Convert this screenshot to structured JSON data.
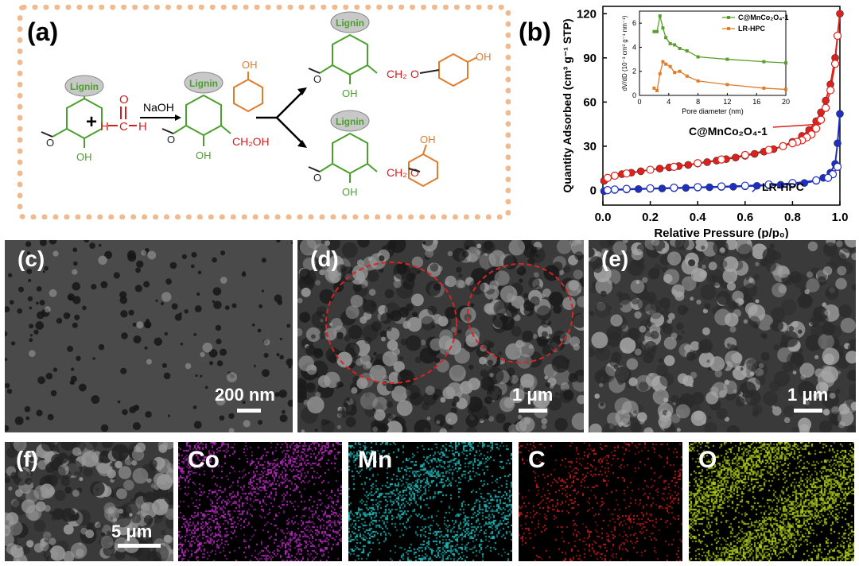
{
  "panel_a": {
    "label": "(a)",
    "lignin": "Lignin",
    "naoh": "NaOH",
    "plus": "+",
    "ch2oh": "CH₂OH",
    "ch2": "CH₂",
    "oxygen": "O",
    "methoxy": "O",
    "oh": "OH",
    "ho": "OH",
    "h": "H",
    "c": "C"
  },
  "panel_b": {
    "label": "(b)",
    "chart_data": {
      "type": "scatter",
      "xlabel": "Relative Pressure (p/p₀)",
      "ylabel": "Quantity Adsorbed (cm³ g⁻¹ STP)",
      "xlim": [
        0.0,
        1.0
      ],
      "ylim": [
        -10,
        125
      ],
      "xticks": [
        "0.0",
        "0.2",
        "0.4",
        "0.6",
        "0.8",
        "1.0"
      ],
      "yticks": [
        "0",
        "30",
        "60",
        "90",
        "120"
      ],
      "annotations": [
        "C@MnCo₂O₄-1",
        "LR-HPC"
      ],
      "series": [
        {
          "name": "C@MnCo₂O₄-1",
          "color": "#e0201b",
          "adsorption": {
            "x": [
              0.005,
              0.02,
              0.05,
              0.08,
              0.12,
              0.16,
              0.2,
              0.24,
              0.28,
              0.32,
              0.36,
              0.4,
              0.44,
              0.48,
              0.52,
              0.56,
              0.6,
              0.64,
              0.68,
              0.72,
              0.76,
              0.8,
              0.84,
              0.87,
              0.9,
              0.92,
              0.94,
              0.96,
              0.98,
              0.99,
              1.0
            ],
            "y": [
              6.5,
              8.5,
              10,
              11,
              12,
              13,
              14,
              14.8,
              15.6,
              16.5,
              17.3,
              18.2,
              19.2,
              20.2,
              21.2,
              22.3,
              23.5,
              24.8,
              26.3,
              28,
              30.2,
              33,
              37,
              41,
              47,
              53,
              61,
              72,
              90,
              105,
              120
            ]
          },
          "desorption": {
            "x": [
              0.99,
              0.98,
              0.96,
              0.94,
              0.92,
              0.9,
              0.88,
              0.86,
              0.84,
              0.82,
              0.8,
              0.76,
              0.7,
              0.6,
              0.5,
              0.4,
              0.3,
              0.2,
              0.1,
              0.05,
              0.02
            ],
            "y": [
              105,
              86,
              68,
              56,
              48,
              42,
              38,
              36,
              34,
              33,
              32,
              30,
              27.5,
              24,
              21,
              18.5,
              16,
              14,
              11.5,
              10,
              8.5
            ]
          }
        },
        {
          "name": "LR-HPC",
          "color": "#1c2fc4",
          "adsorption": {
            "x": [
              0.005,
              0.02,
              0.05,
              0.1,
              0.15,
              0.2,
              0.25,
              0.3,
              0.35,
              0.4,
              0.45,
              0.5,
              0.55,
              0.6,
              0.65,
              0.7,
              0.75,
              0.8,
              0.85,
              0.9,
              0.93,
              0.96,
              0.98,
              0.99,
              1.0
            ],
            "y": [
              -0.5,
              0,
              0.3,
              0.6,
              0.9,
              1.1,
              1.3,
              1.5,
              1.7,
              1.9,
              2.1,
              2.3,
              2.5,
              2.8,
              3.1,
              3.4,
              3.8,
              4.2,
              5,
              6.5,
              8.5,
              12,
              18,
              32,
              52
            ]
          },
          "desorption": {
            "x": [
              0.99,
              0.97,
              0.95,
              0.9,
              0.8,
              0.7,
              0.6,
              0.5,
              0.4,
              0.3,
              0.2,
              0.1,
              0.05,
              0.02
            ],
            "y": [
              16,
              11,
              8.5,
              6.8,
              5,
              4,
              3.2,
              2.7,
              2.2,
              1.8,
              1.4,
              1,
              0.6,
              0.2
            ]
          }
        }
      ],
      "inset": {
        "type": "line",
        "xlabel": "Pore diameter (nm)",
        "ylabel": "dV/dD (10⁻³ cm³ g⁻¹ nm⁻¹)",
        "xlim": [
          0,
          20
        ],
        "ylim": [
          0,
          7
        ],
        "xticks": [
          "0",
          "4",
          "8",
          "12",
          "16",
          "20"
        ],
        "yticks": [
          "0",
          "2",
          "4",
          "6"
        ],
        "legend": [
          "C@MnCo₂O₄-1",
          "LR-HPC"
        ],
        "series": [
          {
            "name": "C@MnCo₂O₄-1",
            "color": "#5a9e2c",
            "x": [
              2,
              2.4,
              2.8,
              3.2,
              3.6,
              4.2,
              4.8,
              5.5,
              6.5,
              8,
              12,
              17,
              20
            ],
            "y": [
              5.3,
              5.3,
              6.6,
              5.6,
              4.8,
              4.3,
              4.2,
              3.9,
              3.7,
              3.2,
              3.0,
              2.8,
              2.7
            ]
          },
          {
            "name": "LR-HPC",
            "color": "#e07c2a",
            "x": [
              2,
              2.4,
              2.8,
              3.2,
              3.6,
              4.2,
              4.8,
              5.5,
              6.5,
              8,
              12,
              17,
              20
            ],
            "y": [
              0.6,
              0.4,
              1.8,
              2.8,
              2.6,
              2.4,
              1.9,
              2.0,
              1.6,
              1.2,
              0.9,
              0.6,
              0.5
            ]
          }
        ]
      }
    }
  },
  "panel_c": {
    "label": "(c)",
    "scale": "200 nm"
  },
  "panel_d": {
    "label": "(d)",
    "scale": "1 μm"
  },
  "panel_e": {
    "label": "(e)",
    "scale": "1 μm"
  },
  "panel_f": {
    "label": "(f)",
    "scale": "5 μm"
  },
  "eds": [
    {
      "element": "Co",
      "color": "#c030c8"
    },
    {
      "element": "Mn",
      "color": "#28c8c8"
    },
    {
      "element": "C",
      "color": "#d02020"
    },
    {
      "element": "O",
      "color": "#b8d820"
    }
  ]
}
